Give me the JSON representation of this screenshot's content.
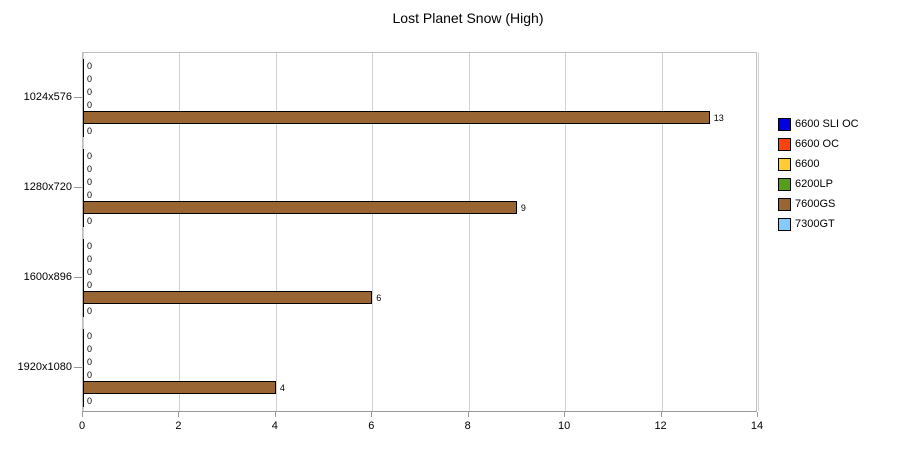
{
  "chart_data": {
    "type": "bar",
    "orientation": "horizontal",
    "title": "Lost Planet Snow (High)",
    "categories": [
      "1024x576",
      "1280x720",
      "1600x896",
      "1920x1080"
    ],
    "series": [
      {
        "name": "6600 SLI OC",
        "color": "#0000e0",
        "values": [
          0,
          0,
          0,
          0
        ]
      },
      {
        "name": "6600 OC",
        "color": "#ff420e",
        "values": [
          0,
          0,
          0,
          0
        ]
      },
      {
        "name": "6600",
        "color": "#ffcc33",
        "values": [
          0,
          0,
          0,
          0
        ]
      },
      {
        "name": "6200LP",
        "color": "#579d1c",
        "values": [
          0,
          0,
          0,
          0
        ]
      },
      {
        "name": "7600GS",
        "color": "#996633",
        "values": [
          13,
          9,
          6,
          4
        ]
      },
      {
        "name": "7300GT",
        "color": "#83caff",
        "values": [
          0,
          0,
          0,
          0
        ]
      }
    ],
    "xlim": [
      0,
      14
    ],
    "x_ticks": [
      0,
      2,
      4,
      6,
      8,
      10,
      12,
      14
    ],
    "grid": true,
    "legend_position": "right",
    "value_labels": true,
    "colors": {
      "background": "#ffffff",
      "gridline": "#d0d0d0",
      "axis_line": "#999999",
      "plot_border": "#c0c0c0",
      "text": "#000000"
    }
  }
}
